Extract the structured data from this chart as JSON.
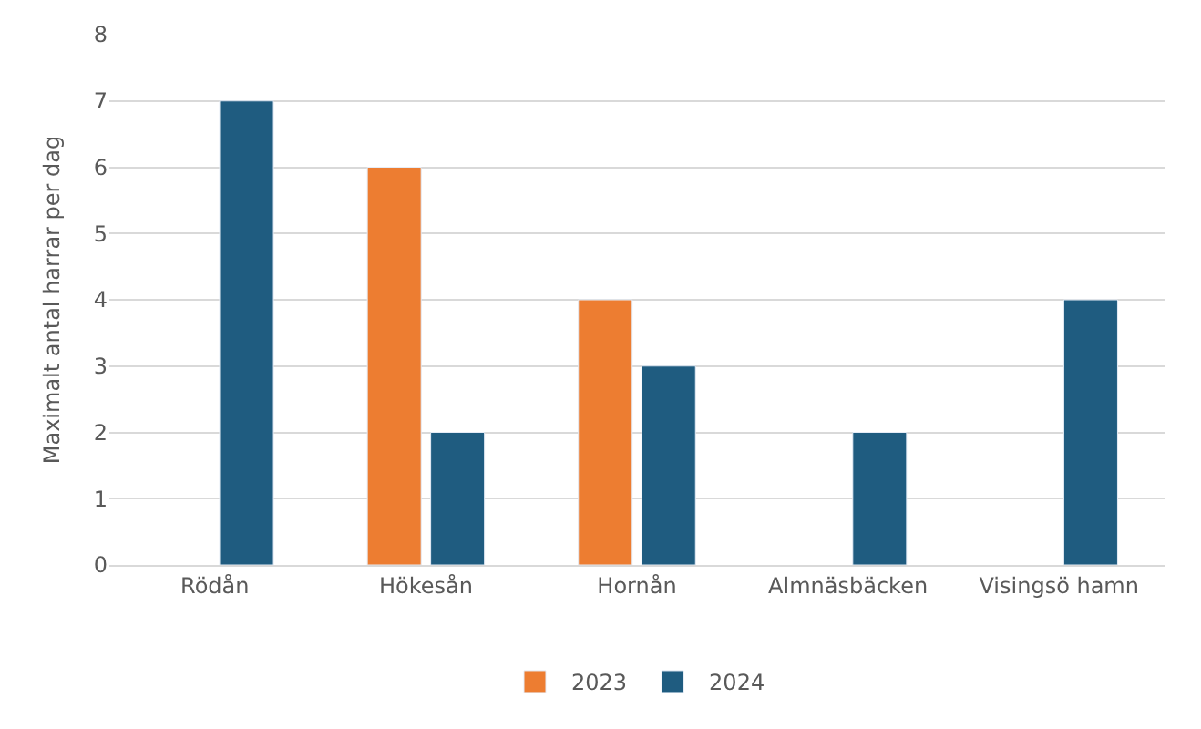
{
  "chart_data": {
    "type": "bar",
    "ylabel": "Maximalt antal harrar per dag",
    "categories": [
      "Rödån",
      "Hökesån",
      "Hornån",
      "Almnäsbäcken",
      "Visingsö hamn"
    ],
    "series": [
      {
        "name": "2023",
        "color": "#ed7d31",
        "values": [
          null,
          6,
          4,
          null,
          null
        ]
      },
      {
        "name": "2024",
        "color": "#1f5c80",
        "values": [
          7,
          2,
          3,
          2,
          4
        ]
      }
    ],
    "ylim": [
      0,
      8
    ],
    "yticks": [
      0,
      1,
      2,
      3,
      4,
      5,
      6,
      7,
      8
    ],
    "grid": "y",
    "legend": "bottom"
  }
}
